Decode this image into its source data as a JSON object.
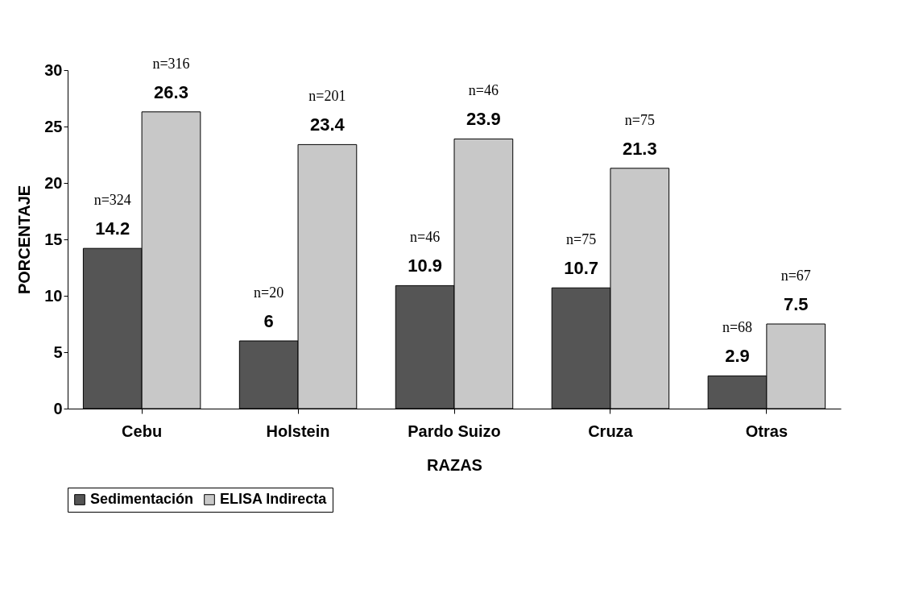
{
  "chart_data": {
    "type": "bar",
    "xlabel": "RAZAS",
    "ylabel": "PORCENTAJE",
    "categories": [
      "Cebu",
      "Holstein",
      "Pardo Suizo",
      "Cruza",
      "Otras"
    ],
    "series": [
      {
        "name": "Sedimentación",
        "color": "#555555",
        "values": [
          14.2,
          6,
          10.9,
          10.7,
          2.9
        ]
      },
      {
        "name": "ELISA Indirecta",
        "color": "#c8c8c8",
        "values": [
          26.3,
          23.4,
          23.9,
          21.3,
          7.5
        ]
      }
    ],
    "ylim": [
      0,
      30
    ],
    "yticks": [
      0,
      5,
      10,
      15,
      20,
      25,
      30
    ],
    "grid": false,
    "legend": "bottom",
    "data_labels": true,
    "annotations": [
      {
        "text": "n=324",
        "x": "Cebu",
        "y": 14.2
      },
      {
        "text": "n=316",
        "x": "Cebu",
        "y": 26.3
      },
      {
        "text": "n=20",
        "x": "Holstein",
        "y": 6
      },
      {
        "text": "n=201",
        "x": "Holstein",
        "y": 23.4
      },
      {
        "text": "n=46",
        "x": "Pardo Suizo",
        "y": 10.9
      },
      {
        "text": "n=46",
        "x": "Pardo Suizo",
        "y": 23.9
      },
      {
        "text": "n=75",
        "x": "Cruza",
        "y": 10.7
      },
      {
        "text": "n=75",
        "x": "Cruza",
        "y": 21.3
      },
      {
        "text": "n=68",
        "x": "Otras",
        "y": 2.9
      },
      {
        "text": "n=67",
        "x": "Otras",
        "y": 7.5
      }
    ]
  }
}
